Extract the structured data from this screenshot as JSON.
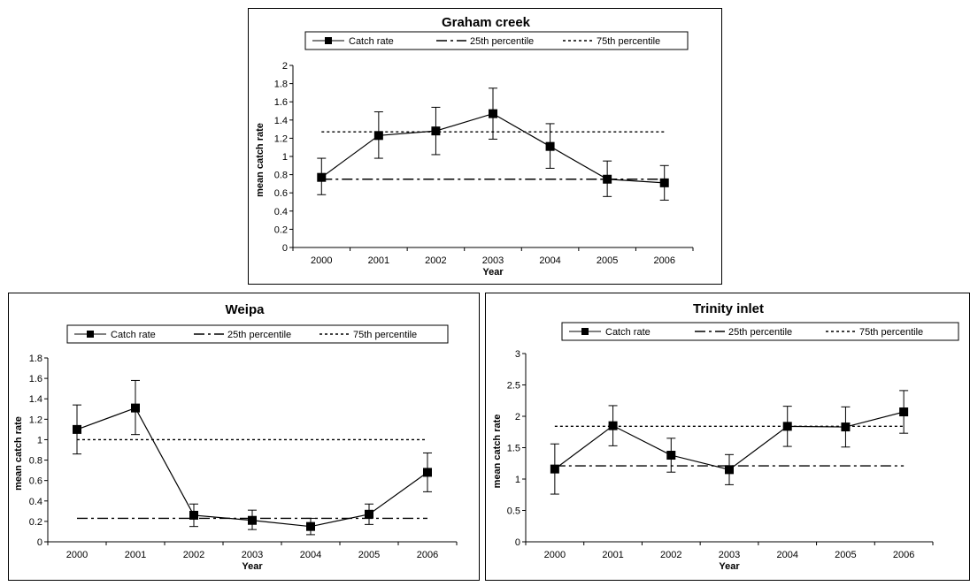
{
  "chart_data": [
    {
      "type": "line",
      "title": "Graham creek",
      "xlabel": "Year",
      "ylabel": "mean catch rate",
      "categories": [
        "2000",
        "2001",
        "2002",
        "2003",
        "2004",
        "2005",
        "2006"
      ],
      "ylim": [
        0,
        2
      ],
      "yticks": [
        "0",
        "0.2",
        "0.4",
        "0.6",
        "0.8",
        "1",
        "1.2",
        "1.4",
        "1.6",
        "1.8",
        "2"
      ],
      "legend_position": "top",
      "grid": false,
      "legend": {
        "catch": "Catch rate",
        "p25": "25th percentile",
        "p75": "75th percentile"
      },
      "series": [
        {
          "name": "Catch rate",
          "values": [
            0.77,
            1.23,
            1.28,
            1.47,
            1.11,
            0.75,
            0.71
          ],
          "err_low": [
            0.58,
            0.98,
            1.02,
            1.19,
            0.87,
            0.56,
            0.52
          ],
          "err_high": [
            0.98,
            1.49,
            1.54,
            1.75,
            1.36,
            0.95,
            0.9
          ]
        }
      ],
      "p25": 0.75,
      "p75": 1.27
    },
    {
      "type": "line",
      "title": "Weipa",
      "xlabel": "Year",
      "ylabel": "mean catch rate",
      "categories": [
        "2000",
        "2001",
        "2002",
        "2003",
        "2004",
        "2005",
        "2006"
      ],
      "ylim": [
        0,
        1.8
      ],
      "yticks": [
        "0",
        "0.2",
        "0.4",
        "0.6",
        "0.8",
        "1",
        "1.2",
        "1.4",
        "1.6",
        "1.8"
      ],
      "legend_position": "top",
      "grid": false,
      "legend": {
        "catch": "Catch rate",
        "p25": "25th percentile",
        "p75": "75th percentile"
      },
      "series": [
        {
          "name": "Catch rate",
          "values": [
            1.1,
            1.31,
            0.26,
            0.21,
            0.15,
            0.27,
            0.68
          ],
          "err_low": [
            0.86,
            1.05,
            0.15,
            0.12,
            0.07,
            0.17,
            0.49
          ],
          "err_high": [
            1.34,
            1.58,
            0.37,
            0.31,
            0.23,
            0.37,
            0.87
          ]
        }
      ],
      "p25": 0.23,
      "p75": 1.0
    },
    {
      "type": "line",
      "title": "Trinity inlet",
      "xlabel": "Year",
      "ylabel": "mean catch rate",
      "categories": [
        "2000",
        "2001",
        "2002",
        "2003",
        "2004",
        "2005",
        "2006"
      ],
      "ylim": [
        0,
        3
      ],
      "yticks": [
        "0",
        "0.5",
        "1",
        "1.5",
        "2",
        "2.5",
        "3"
      ],
      "legend_position": "top",
      "grid": false,
      "legend": {
        "catch": "Catch rate",
        "p25": "25th percentile",
        "p75": "75th percentile"
      },
      "series": [
        {
          "name": "Catch rate",
          "values": [
            1.16,
            1.85,
            1.38,
            1.15,
            1.84,
            1.83,
            2.07
          ],
          "err_low": [
            0.76,
            1.53,
            1.11,
            0.91,
            1.52,
            1.51,
            1.73
          ],
          "err_high": [
            1.56,
            2.17,
            1.65,
            1.39,
            2.16,
            2.15,
            2.41
          ]
        }
      ],
      "p25": 1.21,
      "p75": 1.84
    }
  ]
}
